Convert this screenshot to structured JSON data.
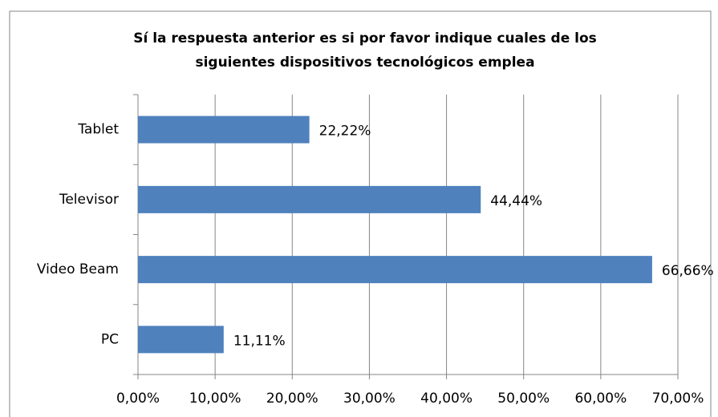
{
  "chart_data": {
    "type": "bar",
    "orientation": "horizontal",
    "title": [
      "Sí la respuesta anterior es si por favor indique cuales de los",
      "siguientes dispositivos tecnológicos emplea"
    ],
    "categories": [
      "Tablet",
      "Televisor",
      "Video Beam",
      "PC"
    ],
    "values": [
      22.22,
      44.44,
      66.66,
      11.11
    ],
    "value_labels": [
      "22,22%",
      "44,44%",
      "66,66%",
      "11,11%"
    ],
    "color": "#4f81bd",
    "xlim": [
      0,
      70
    ],
    "xticks": [
      {
        "value": 0,
        "label": "0,00%"
      },
      {
        "value": 10,
        "label": "10,00%"
      },
      {
        "value": 20,
        "label": "20,00%"
      },
      {
        "value": 30,
        "label": "30,00%"
      },
      {
        "value": 40,
        "label": "40,00%"
      },
      {
        "value": 50,
        "label": "50,00%"
      },
      {
        "value": 60,
        "label": "60,00%"
      },
      {
        "value": 70,
        "label": "70,00%"
      }
    ],
    "grid": true
  }
}
